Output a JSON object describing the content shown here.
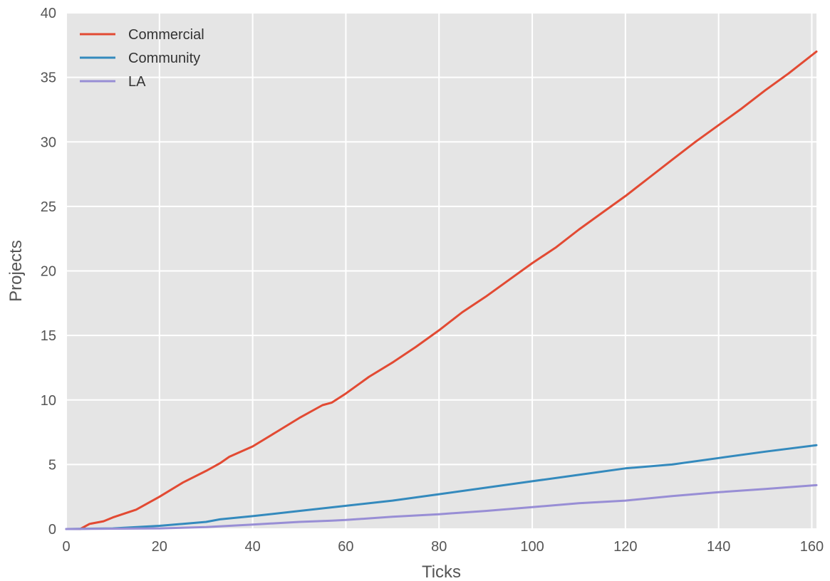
{
  "chart_data": {
    "type": "line",
    "title": "",
    "xlabel": "Ticks",
    "ylabel": "Projects",
    "xlim": [
      0,
      161
    ],
    "ylim": [
      0,
      40
    ],
    "xticks": [
      0,
      20,
      40,
      60,
      80,
      100,
      120,
      140,
      160
    ],
    "yticks": [
      0,
      5,
      10,
      15,
      20,
      25,
      30,
      35,
      40
    ],
    "grid": true,
    "legend_position": "top-left",
    "background_color": "#e5e5e5",
    "grid_color": "#ffffff",
    "series": [
      {
        "name": "Commercial",
        "color": "#e24a33",
        "x": [
          0,
          3,
          5,
          8,
          10,
          15,
          20,
          25,
          30,
          33,
          35,
          40,
          45,
          50,
          55,
          57,
          60,
          65,
          70,
          75,
          80,
          85,
          90,
          95,
          100,
          105,
          110,
          115,
          120,
          125,
          130,
          135,
          140,
          145,
          150,
          155,
          161
        ],
        "y": [
          0,
          0,
          0.4,
          0.6,
          0.9,
          1.5,
          2.5,
          3.6,
          4.5,
          5.1,
          5.6,
          6.4,
          7.5,
          8.6,
          9.6,
          9.8,
          10.5,
          11.8,
          12.9,
          14.1,
          15.4,
          16.8,
          18.0,
          19.3,
          20.6,
          21.8,
          23.2,
          24.5,
          25.8,
          27.2,
          28.6,
          30.0,
          31.3,
          32.6,
          34.0,
          35.3,
          37.0
        ]
      },
      {
        "name": "Community",
        "color": "#348abd",
        "x": [
          0,
          10,
          20,
          30,
          33,
          40,
          50,
          60,
          70,
          80,
          90,
          100,
          110,
          120,
          130,
          140,
          150,
          161
        ],
        "y": [
          0,
          0.05,
          0.25,
          0.55,
          0.75,
          1.0,
          1.4,
          1.8,
          2.2,
          2.7,
          3.2,
          3.7,
          4.2,
          4.7,
          5.0,
          5.5,
          6.0,
          6.5
        ]
      },
      {
        "name": "LA",
        "color": "#988ed5",
        "x": [
          0,
          20,
          30,
          40,
          50,
          57,
          60,
          70,
          80,
          90,
          100,
          110,
          120,
          130,
          140,
          150,
          161
        ],
        "y": [
          0,
          0.05,
          0.15,
          0.35,
          0.55,
          0.65,
          0.7,
          0.95,
          1.15,
          1.4,
          1.7,
          2.0,
          2.2,
          2.55,
          2.85,
          3.1,
          3.4
        ]
      }
    ]
  }
}
